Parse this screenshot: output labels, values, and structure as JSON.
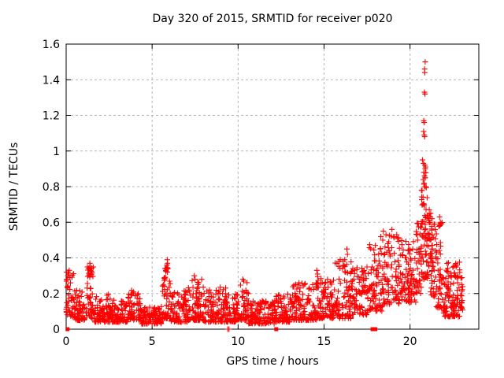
{
  "page": {
    "background": "#ffffff"
  },
  "chart_data": {
    "type": "scatter",
    "title": "Day 320 of 2015, SRMTID for receiver p020",
    "xlabel": "GPS time / hours",
    "ylabel": "SRMTID / TECUs",
    "xlim": [
      0,
      24
    ],
    "ylim": [
      0,
      1.6
    ],
    "xticks": {
      "values": [
        0,
        5,
        10,
        15,
        20
      ],
      "labels": [
        "0",
        "5",
        "10",
        "15",
        "20"
      ]
    },
    "yticks": {
      "values": [
        0,
        0.2,
        0.4,
        0.6,
        0.8,
        1.0,
        1.2,
        1.4,
        1.6
      ],
      "labels": [
        "0",
        "0.2",
        "0.4",
        "0.6",
        "0.8",
        "1",
        "1.2",
        "1.4",
        "1.6"
      ]
    },
    "grid": true,
    "legend_position": "none",
    "marker": "plus",
    "marker_color": "#ff0000",
    "grid_color": "#b4b4b4",
    "axis_color": "#000000",
    "seed": 320,
    "notable_points": [
      [
        20.88,
        1.5
      ],
      [
        20.85,
        1.46
      ],
      [
        20.86,
        1.44
      ],
      [
        20.84,
        1.33
      ],
      [
        20.87,
        1.32
      ],
      [
        20.8,
        1.17
      ],
      [
        20.82,
        1.16
      ],
      [
        20.79,
        1.11
      ],
      [
        20.83,
        1.09
      ],
      [
        20.85,
        1.08
      ],
      [
        20.72,
        0.95
      ],
      [
        20.78,
        0.93
      ],
      [
        20.86,
        0.92
      ],
      [
        20.9,
        0.91
      ],
      [
        20.8,
        0.88
      ],
      [
        20.84,
        0.86
      ],
      [
        20.88,
        0.85
      ],
      [
        20.76,
        0.84
      ],
      [
        20.82,
        0.82
      ],
      [
        20.86,
        0.8
      ],
      [
        0.02,
        0.27
      ],
      [
        0.05,
        0.28
      ],
      [
        0.1,
        0.3
      ],
      [
        0.12,
        0.32
      ],
      [
        0.15,
        0.31
      ],
      [
        0.18,
        0.33
      ],
      [
        0.22,
        0.29
      ],
      [
        0.25,
        0.26
      ],
      [
        1.35,
        0.34
      ],
      [
        1.38,
        0.37
      ],
      [
        1.4,
        0.35
      ],
      [
        1.42,
        0.33
      ],
      [
        1.44,
        0.31
      ],
      [
        5.86,
        0.36
      ],
      [
        5.88,
        0.39
      ],
      [
        5.9,
        0.37
      ],
      [
        5.92,
        0.34
      ],
      [
        5.89,
        0.32
      ],
      [
        7.45,
        0.3
      ],
      [
        7.5,
        0.28
      ],
      [
        10.28,
        0.28
      ],
      [
        10.33,
        0.27
      ],
      [
        14.58,
        0.33
      ],
      [
        14.62,
        0.31
      ],
      [
        16.2,
        0.39
      ],
      [
        16.33,
        0.45
      ],
      [
        16.36,
        0.42
      ],
      [
        18.3,
        0.52
      ],
      [
        18.45,
        0.55
      ],
      [
        18.6,
        0.53
      ],
      [
        18.95,
        0.56
      ],
      [
        19.05,
        0.52
      ],
      [
        21.12,
        0.67
      ],
      [
        21.2,
        0.65
      ],
      [
        21.28,
        0.62
      ],
      [
        21.72,
        0.63
      ],
      [
        21.76,
        0.6
      ],
      [
        22.62,
        0.3
      ],
      [
        22.72,
        0.29
      ]
    ],
    "zero_square_points_x": [
      0.08,
      12.22,
      17.82,
      17.9,
      17.98
    ],
    "zero_plus_points_x": [
      9.4,
      9.47
    ],
    "band_segments": [
      [
        0.0,
        0.5,
        45,
        0.07,
        0.33,
        1.4
      ],
      [
        0.5,
        1.2,
        60,
        0.05,
        0.22,
        1.8
      ],
      [
        1.2,
        1.6,
        45,
        0.06,
        0.36,
        1.5
      ],
      [
        1.6,
        2.6,
        85,
        0.04,
        0.2,
        1.8
      ],
      [
        2.6,
        3.6,
        85,
        0.04,
        0.18,
        1.8
      ],
      [
        3.6,
        4.3,
        60,
        0.05,
        0.22,
        1.8
      ],
      [
        4.3,
        5.6,
        110,
        0.03,
        0.13,
        1.5
      ],
      [
        5.6,
        6.1,
        55,
        0.06,
        0.38,
        1.7
      ],
      [
        6.1,
        7.1,
        85,
        0.04,
        0.22,
        1.8
      ],
      [
        7.1,
        7.9,
        70,
        0.05,
        0.29,
        2.0
      ],
      [
        7.9,
        9.3,
        120,
        0.04,
        0.24,
        1.9
      ],
      [
        9.3,
        10.05,
        65,
        0.04,
        0.2,
        1.8
      ],
      [
        10.05,
        10.6,
        50,
        0.05,
        0.27,
        1.7
      ],
      [
        10.6,
        12.1,
        125,
        0.03,
        0.16,
        1.6
      ],
      [
        12.1,
        13.1,
        85,
        0.04,
        0.2,
        1.8
      ],
      [
        13.1,
        14.6,
        130,
        0.05,
        0.27,
        1.9
      ],
      [
        14.6,
        15.6,
        90,
        0.06,
        0.3,
        1.9
      ],
      [
        15.6,
        16.6,
        90,
        0.06,
        0.4,
        1.9
      ],
      [
        16.6,
        17.6,
        90,
        0.08,
        0.35,
        1.7
      ],
      [
        17.6,
        18.4,
        75,
        0.1,
        0.48,
        1.6
      ],
      [
        18.4,
        19.4,
        90,
        0.14,
        0.54,
        1.5
      ],
      [
        19.4,
        20.35,
        90,
        0.15,
        0.5,
        1.5
      ],
      [
        20.35,
        20.65,
        35,
        0.2,
        0.62,
        1.3
      ],
      [
        20.65,
        21.05,
        70,
        0.28,
        0.95,
        1.7
      ],
      [
        21.05,
        21.5,
        60,
        0.18,
        0.66,
        1.4
      ],
      [
        21.5,
        21.9,
        45,
        0.12,
        0.6,
        1.7
      ],
      [
        21.9,
        22.9,
        115,
        0.07,
        0.38,
        1.9
      ],
      [
        22.9,
        23.08,
        18,
        0.1,
        0.3,
        1.3
      ]
    ]
  }
}
